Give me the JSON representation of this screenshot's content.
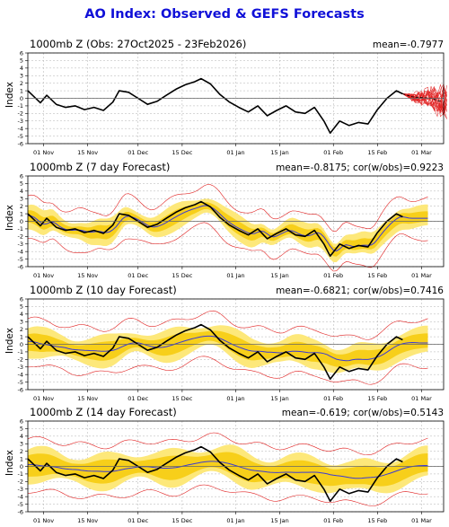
{
  "title": "AO Index: Observed & GEFS Forecasts",
  "colors": {
    "title": "#1010d8",
    "observed": "#000000",
    "mean": "#3a3ad6",
    "band_outer": "#fde87a",
    "band_inner": "#f7cf1a",
    "members": "#e02020",
    "grid": "#b0b0b0",
    "zero_line": "#666666"
  },
  "panels": [
    {
      "title": "1000mb Z (Obs: 27Oct2025 - 23Feb2026)",
      "stats": "mean=-0.7977",
      "ylabel": "Index",
      "yticks": [
        "-6",
        "-5",
        "-4",
        "-3",
        "-2",
        "-1",
        "0",
        "1",
        "2",
        "3",
        "4",
        "5",
        "6"
      ],
      "xticks": [
        "01 Nov",
        "15 Nov",
        "01 Dec",
        "15 Dec",
        "01 Jan",
        "15 Jan",
        "01 Feb",
        "15 Feb",
        "01 Mar"
      ]
    },
    {
      "title": "1000mb Z (7 day Forecast)",
      "stats": "mean=-0.8175; cor(w/obs)=0.9223",
      "ylabel": "Index",
      "yticks": [
        "-6",
        "-5",
        "-4",
        "-3",
        "-2",
        "-1",
        "0",
        "1",
        "2",
        "3",
        "4",
        "5",
        "6"
      ],
      "xticks": [
        "01 Nov",
        "15 Nov",
        "01 Dec",
        "15 Dec",
        "01 Jan",
        "15 Jan",
        "01 Feb",
        "15 Feb",
        "01 Mar"
      ]
    },
    {
      "title": "1000mb Z (10 day Forecast)",
      "stats": "mean=-0.6821; cor(w/obs)=0.7416",
      "ylabel": "Index",
      "yticks": [
        "-6",
        "-5",
        "-4",
        "-3",
        "-2",
        "-1",
        "0",
        "1",
        "2",
        "3",
        "4",
        "5",
        "6"
      ],
      "xticks": [
        "01 Nov",
        "15 Nov",
        "01 Dec",
        "15 Dec",
        "01 Jan",
        "15 Jan",
        "01 Feb",
        "15 Feb",
        "01 Mar"
      ]
    },
    {
      "title": "1000mb Z (14 day Forecast)",
      "stats": "mean=-0.619; cor(w/obs)=0.5143",
      "ylabel": "Index",
      "yticks": [
        "-6",
        "-5",
        "-4",
        "-3",
        "-2",
        "-1",
        "0",
        "1",
        "2",
        "3",
        "4",
        "5",
        "6"
      ],
      "xticks": [
        "01 Nov",
        "15 Nov",
        "01 Dec",
        "15 Dec",
        "01 Jan",
        "15 Jan",
        "01 Feb",
        "15 Feb",
        "01 Mar"
      ]
    }
  ],
  "chart_data": {
    "type": "line",
    "ylim": [
      -6,
      6
    ],
    "xlim": [
      "2025-10-27",
      "2026-03-08"
    ],
    "grid": true,
    "observed": {
      "x": [
        "2025-10-27",
        "2025-10-29",
        "2025-10-31",
        "2025-11-02",
        "2025-11-05",
        "2025-11-08",
        "2025-11-11",
        "2025-11-14",
        "2025-11-17",
        "2025-11-20",
        "2025-11-23",
        "2025-11-25",
        "2025-11-28",
        "2025-12-01",
        "2025-12-04",
        "2025-12-07",
        "2025-12-10",
        "2025-12-13",
        "2025-12-16",
        "2025-12-19",
        "2025-12-21",
        "2025-12-24",
        "2025-12-27",
        "2025-12-30",
        "2026-01-02",
        "2026-01-05",
        "2026-01-08",
        "2026-01-11",
        "2026-01-14",
        "2026-01-17",
        "2026-01-20",
        "2026-01-23",
        "2026-01-26",
        "2026-01-29",
        "2026-01-31",
        "2026-02-03",
        "2026-02-06",
        "2026-02-09",
        "2026-02-12",
        "2026-02-15",
        "2026-02-18",
        "2026-02-21",
        "2026-02-23"
      ],
      "y": [
        1.0,
        0.2,
        -0.6,
        0.4,
        -0.8,
        -1.2,
        -1.0,
        -1.5,
        -1.2,
        -1.6,
        -0.5,
        1.0,
        0.8,
        0.0,
        -0.8,
        -0.4,
        0.4,
        1.2,
        1.8,
        2.2,
        2.6,
        1.9,
        0.5,
        -0.5,
        -1.2,
        -1.8,
        -1.0,
        -2.3,
        -1.6,
        -1.0,
        -1.8,
        -2.0,
        -1.2,
        -3.0,
        -4.6,
        -3.0,
        -3.6,
        -3.2,
        -3.4,
        -1.5,
        0.0,
        1.0,
        0.6
      ]
    },
    "forecast_mean": {
      "name": "GEFS ensemble mean",
      "x": [
        "2026-02-23",
        "2026-02-26",
        "2026-03-01",
        "2026-03-04",
        "2026-03-07"
      ],
      "y": [
        0.6,
        0.2,
        0.1,
        0.0,
        -0.4
      ]
    },
    "leads": [
      {
        "lead_days": 7,
        "mean": -0.8175,
        "cor_w_obs": 0.9223
      },
      {
        "lead_days": 10,
        "mean": -0.6821,
        "cor_w_obs": 0.7416
      },
      {
        "lead_days": 14,
        "mean": -0.619,
        "cor_w_obs": 0.5143
      }
    ],
    "observed_mean": -0.7977
  }
}
